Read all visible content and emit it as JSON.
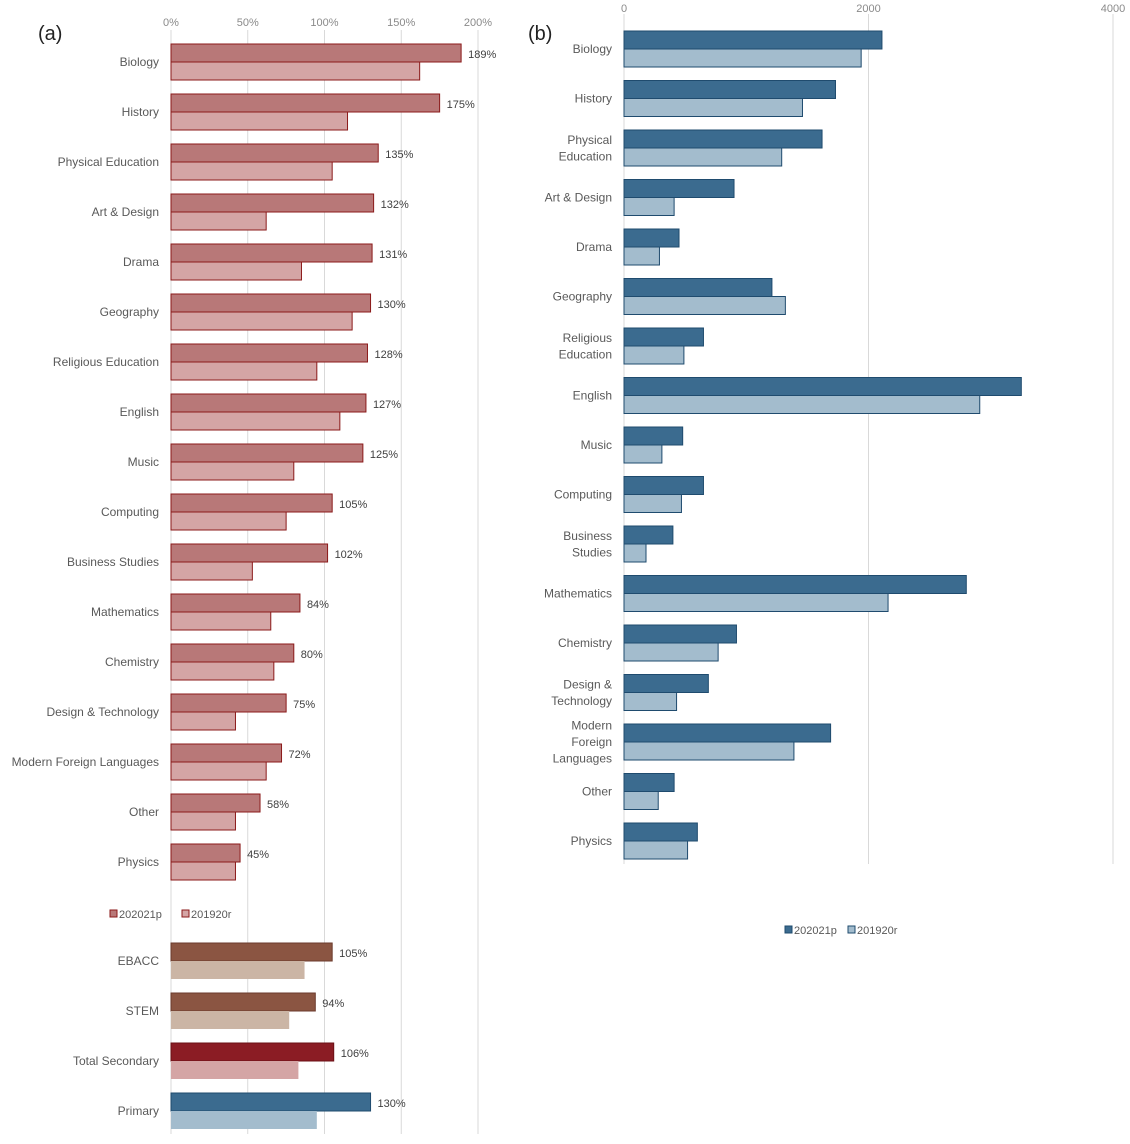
{
  "chart_data": [
    {
      "panel_label": "(a)",
      "type": "bar",
      "orientation": "horizontal",
      "x_ticks": [
        "0%",
        "50%",
        "100%",
        "150%",
        "200%"
      ],
      "xlim": [
        0,
        200
      ],
      "grid": true,
      "legend": {
        "position": "below-subjects",
        "entries": [
          "202021p",
          "201920r"
        ]
      },
      "categories": [
        "Biology",
        "History",
        "Physical Education",
        "Art & Design",
        "Drama",
        "Geography",
        "Religious Education",
        "English",
        "Music",
        "Computing",
        "Business Studies",
        "Mathematics",
        "Chemistry",
        "Design & Technology",
        "Modern Foreign Languages",
        "Other",
        "Physics"
      ],
      "series": [
        {
          "name": "202021p",
          "values": [
            189,
            175,
            135,
            132,
            131,
            130,
            128,
            127,
            125,
            105,
            102,
            84,
            80,
            75,
            72,
            58,
            45
          ],
          "labels": [
            "189%",
            "175%",
            "135%",
            "132%",
            "131%",
            "130%",
            "128%",
            "127%",
            "125%",
            "105%",
            "102%",
            "84%",
            "80%",
            "75%",
            "72%",
            "58%",
            "45%"
          ]
        },
        {
          "name": "201920r",
          "values": [
            162,
            115,
            105,
            62,
            85,
            118,
            95,
            110,
            80,
            75,
            53,
            65,
            67,
            42,
            62,
            42,
            42
          ]
        }
      ],
      "summary_categories": [
        "EBACC",
        "STEM",
        "Total Secondary",
        "Primary"
      ],
      "summary_series": [
        {
          "name": "202021p",
          "values": [
            105,
            94,
            106,
            130
          ],
          "labels": [
            "105%",
            "94%",
            "106%",
            "130%"
          ]
        },
        {
          "name": "201920r",
          "values": [
            87,
            77,
            83,
            95
          ]
        }
      ],
      "colors": {
        "primary_2021": "#b87878",
        "primary_2021_stroke": "#8b1a1a",
        "primary_1920": "#d4a5a5",
        "ebacc_stem_2021": "#8b5542",
        "ebacc_stem_1920": "#cbb5a5",
        "total_2021": "#8b1c24",
        "total_1920": "#d4a5a5",
        "primary_phase_2021": "#3b6b8f",
        "primary_phase_1920": "#a3bccd"
      }
    },
    {
      "panel_label": "(b)",
      "type": "bar",
      "orientation": "horizontal",
      "x_ticks": [
        "0",
        "2000",
        "4000"
      ],
      "xlim": [
        0,
        4000
      ],
      "grid": true,
      "legend": {
        "position": "bottom-center",
        "entries": [
          "202021p",
          "201920r"
        ]
      },
      "categories": [
        "Biology",
        "History",
        "Physical Education",
        "Art & Design",
        "Drama",
        "Geography",
        "Religious Education",
        "English",
        "Music",
        "Computing",
        "Business Studies",
        "Mathematics",
        "Chemistry",
        "Design & Technology",
        "Modern Foreign Languages",
        "Other",
        "Physics"
      ],
      "category_lines": [
        [
          "Biology"
        ],
        [
          "History"
        ],
        [
          "Physical",
          "Education"
        ],
        [
          "Art & Design"
        ],
        [
          "Drama"
        ],
        [
          "Geography"
        ],
        [
          "Religious",
          "Education"
        ],
        [
          "English"
        ],
        [
          "Music"
        ],
        [
          "Computing"
        ],
        [
          "Business",
          "Studies"
        ],
        [
          "Mathematics"
        ],
        [
          "Chemistry"
        ],
        [
          "Design &",
          "Technology"
        ],
        [
          "Modern",
          "Foreign",
          "Languages"
        ],
        [
          "Other"
        ],
        [
          "Physics"
        ]
      ],
      "series": [
        {
          "name": "202021p",
          "values": [
            2110,
            1730,
            1620,
            900,
            450,
            1210,
            650,
            3250,
            480,
            650,
            400,
            2800,
            920,
            690,
            1690,
            410,
            600
          ]
        },
        {
          "name": "201920r",
          "values": [
            1940,
            1460,
            1290,
            410,
            290,
            1320,
            490,
            2910,
            310,
            470,
            180,
            2160,
            770,
            430,
            1390,
            280,
            520
          ]
        }
      ],
      "colors": {
        "s2021": "#3b6b8f",
        "s2021_stroke": "#1f4b6e",
        "s1920": "#a3bccd"
      }
    }
  ]
}
